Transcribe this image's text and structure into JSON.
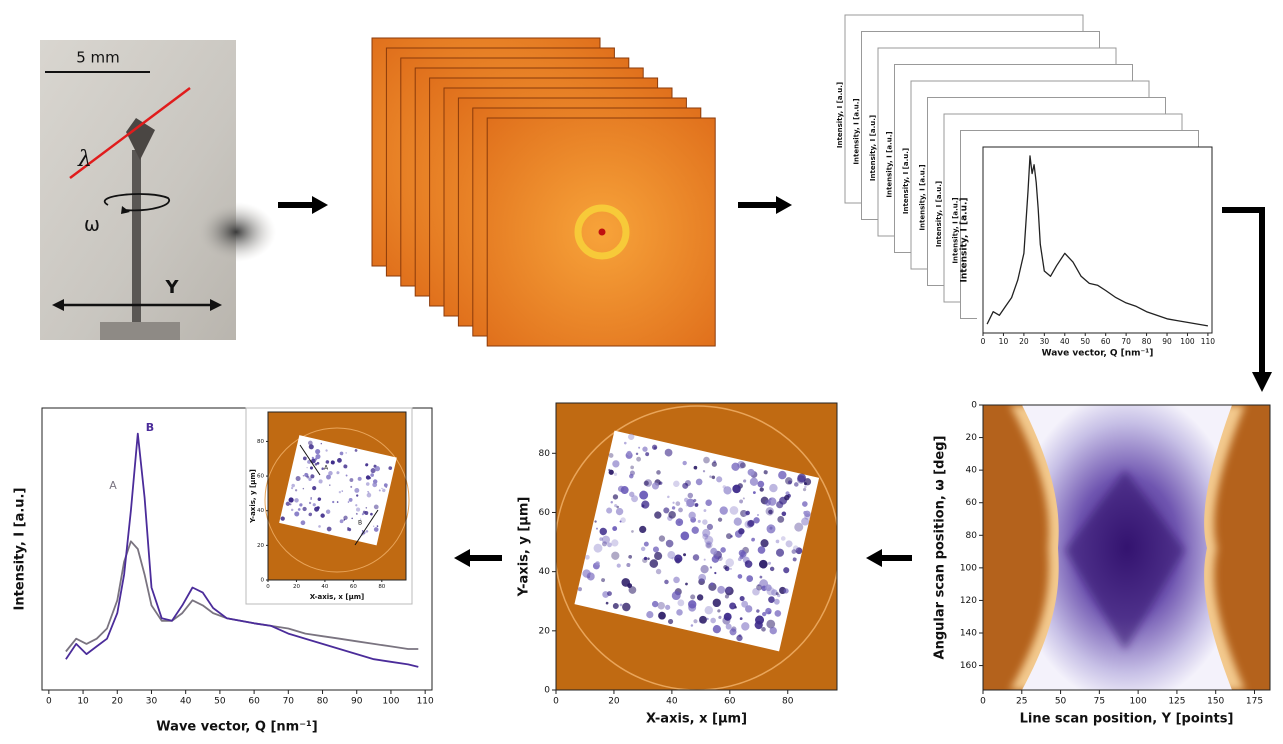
{
  "photo": {
    "scale_bar": "5 mm",
    "wavelength": "λ",
    "rotation": "ω",
    "translation": "Y"
  },
  "profiles": {
    "y_label": "Intensity, I [a.u.]",
    "x_label": "Wave vector, Q [nm⁻¹]",
    "xticks": [
      0,
      10,
      20,
      30,
      40,
      50,
      60,
      70,
      80,
      90,
      100,
      110
    ],
    "xlim": [
      0,
      112
    ],
    "ylim": [
      0,
      1.05
    ],
    "color": "#222222",
    "x": [
      2,
      5,
      8,
      11,
      14,
      17,
      20,
      22,
      23,
      24,
      25,
      26,
      27,
      28,
      30,
      33,
      36,
      40,
      44,
      48,
      52,
      56,
      60,
      65,
      70,
      75,
      80,
      85,
      90,
      95,
      100,
      105,
      110
    ],
    "values": [
      0.05,
      0.12,
      0.1,
      0.15,
      0.2,
      0.3,
      0.45,
      0.8,
      1.0,
      0.9,
      0.95,
      0.85,
      0.7,
      0.5,
      0.35,
      0.32,
      0.38,
      0.45,
      0.4,
      0.32,
      0.28,
      0.27,
      0.24,
      0.2,
      0.17,
      0.15,
      0.12,
      0.1,
      0.08,
      0.07,
      0.06,
      0.05,
      0.04
    ]
  },
  "sinogram": {
    "y_label": "Angular scan position, ω [deg]",
    "x_label": "Line scan position, Y [points]",
    "yticks": [
      0,
      20,
      40,
      60,
      80,
      100,
      120,
      140,
      160
    ],
    "xticks": [
      0,
      25,
      50,
      75,
      100,
      125,
      150,
      175
    ],
    "ylim": [
      0,
      175
    ],
    "xlim": [
      0,
      185
    ]
  },
  "reconstruction": {
    "y_label": "Y-axis, y [μm]",
    "x_label": "X-axis, x [μm]",
    "yticks": [
      0,
      20,
      40,
      60,
      80
    ],
    "xticks": [
      0,
      20,
      40,
      60,
      80
    ],
    "ylim": [
      0,
      97
    ],
    "xlim": [
      0,
      97
    ]
  },
  "spectra": {
    "y_label": "Intensity, I [a.u.]",
    "x_label": "Wave vector, Q [nm⁻¹]",
    "xticks": [
      0,
      10,
      20,
      30,
      40,
      50,
      60,
      70,
      80,
      90,
      100,
      110
    ],
    "xlim": [
      -2,
      112
    ],
    "ylim": [
      0,
      1.1
    ],
    "x": [
      5,
      8,
      11,
      14,
      17,
      20,
      22,
      24,
      26,
      28,
      30,
      33,
      36,
      39,
      42,
      45,
      48,
      52,
      56,
      60,
      65,
      70,
      75,
      80,
      85,
      90,
      95,
      100,
      105,
      108
    ],
    "series": [
      {
        "name": "A",
        "color": "#7a7480",
        "values": [
          0.15,
          0.2,
          0.18,
          0.2,
          0.24,
          0.35,
          0.5,
          0.58,
          0.55,
          0.45,
          0.33,
          0.27,
          0.27,
          0.3,
          0.35,
          0.33,
          0.3,
          0.28,
          0.27,
          0.26,
          0.25,
          0.24,
          0.22,
          0.21,
          0.2,
          0.19,
          0.18,
          0.17,
          0.16,
          0.16
        ]
      },
      {
        "name": "B",
        "color": "#4b2c9a",
        "values": [
          0.12,
          0.18,
          0.14,
          0.17,
          0.2,
          0.3,
          0.45,
          0.7,
          1.0,
          0.75,
          0.4,
          0.28,
          0.27,
          0.33,
          0.4,
          0.38,
          0.32,
          0.28,
          0.27,
          0.26,
          0.25,
          0.22,
          0.2,
          0.18,
          0.16,
          0.14,
          0.12,
          0.11,
          0.1,
          0.09
        ]
      }
    ],
    "inset": {
      "y_label": "Y-axis, y [μm]",
      "x_label": "X-axis, x [μm]",
      "xticks": [
        0,
        20,
        40,
        60,
        80
      ],
      "yticks": [
        0,
        20,
        40,
        60,
        80
      ],
      "xlim": [
        0,
        97
      ],
      "ylim": [
        0,
        97
      ]
    }
  }
}
